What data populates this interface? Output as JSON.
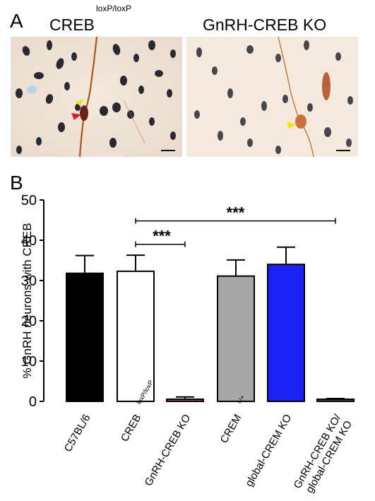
{
  "panel_a": {
    "letter": "A",
    "left_title": {
      "main": "CREB",
      "sup": "loxP/loxP"
    },
    "right_title": "GnRH-CREB KO"
  },
  "panel_b": {
    "letter": "B"
  },
  "colors": {
    "arrow_yellow": "#f2e21a",
    "arrow_red": "#d8202a",
    "bar_black": "#000000",
    "bar_white": "#ffffff",
    "bar_brown": "#b5532a",
    "bar_gray": "#a6a6a6",
    "bar_blue": "#1b22f5",
    "bar_green": "#2f6a35"
  },
  "chart_data": {
    "type": "bar",
    "ylabel": "% GnRH neurons with CREB",
    "ylim": [
      0,
      50
    ],
    "yticks": [
      0,
      10,
      20,
      30,
      40,
      50
    ],
    "categories": [
      {
        "label": "C57BL/6",
        "sup": ""
      },
      {
        "label": "CREB",
        "sup": "loxP/loxP"
      },
      {
        "label": "GnRH-CREB KO",
        "sup": ""
      },
      {
        "label": "CREM",
        "sup": "+/+"
      },
      {
        "label": "global-CREM KO",
        "sup": ""
      },
      {
        "label": "GnRH-CREB KO/",
        "label2": "global-CREM KO",
        "sup": ""
      }
    ],
    "values": [
      31.8,
      32.3,
      0.5,
      31.1,
      34.0,
      0.3
    ],
    "errors": [
      4.4,
      4.0,
      0.6,
      4.0,
      4.3,
      0.4
    ],
    "bar_colors": [
      "#000000",
      "#ffffff",
      "#b5532a",
      "#a6a6a6",
      "#1b22f5",
      "#2f6a35"
    ],
    "significance": [
      {
        "from": 1,
        "to": 2,
        "label": "***",
        "y": 39.0
      },
      {
        "from": 1,
        "to": 5,
        "label": "***",
        "y": 44.8
      }
    ]
  }
}
